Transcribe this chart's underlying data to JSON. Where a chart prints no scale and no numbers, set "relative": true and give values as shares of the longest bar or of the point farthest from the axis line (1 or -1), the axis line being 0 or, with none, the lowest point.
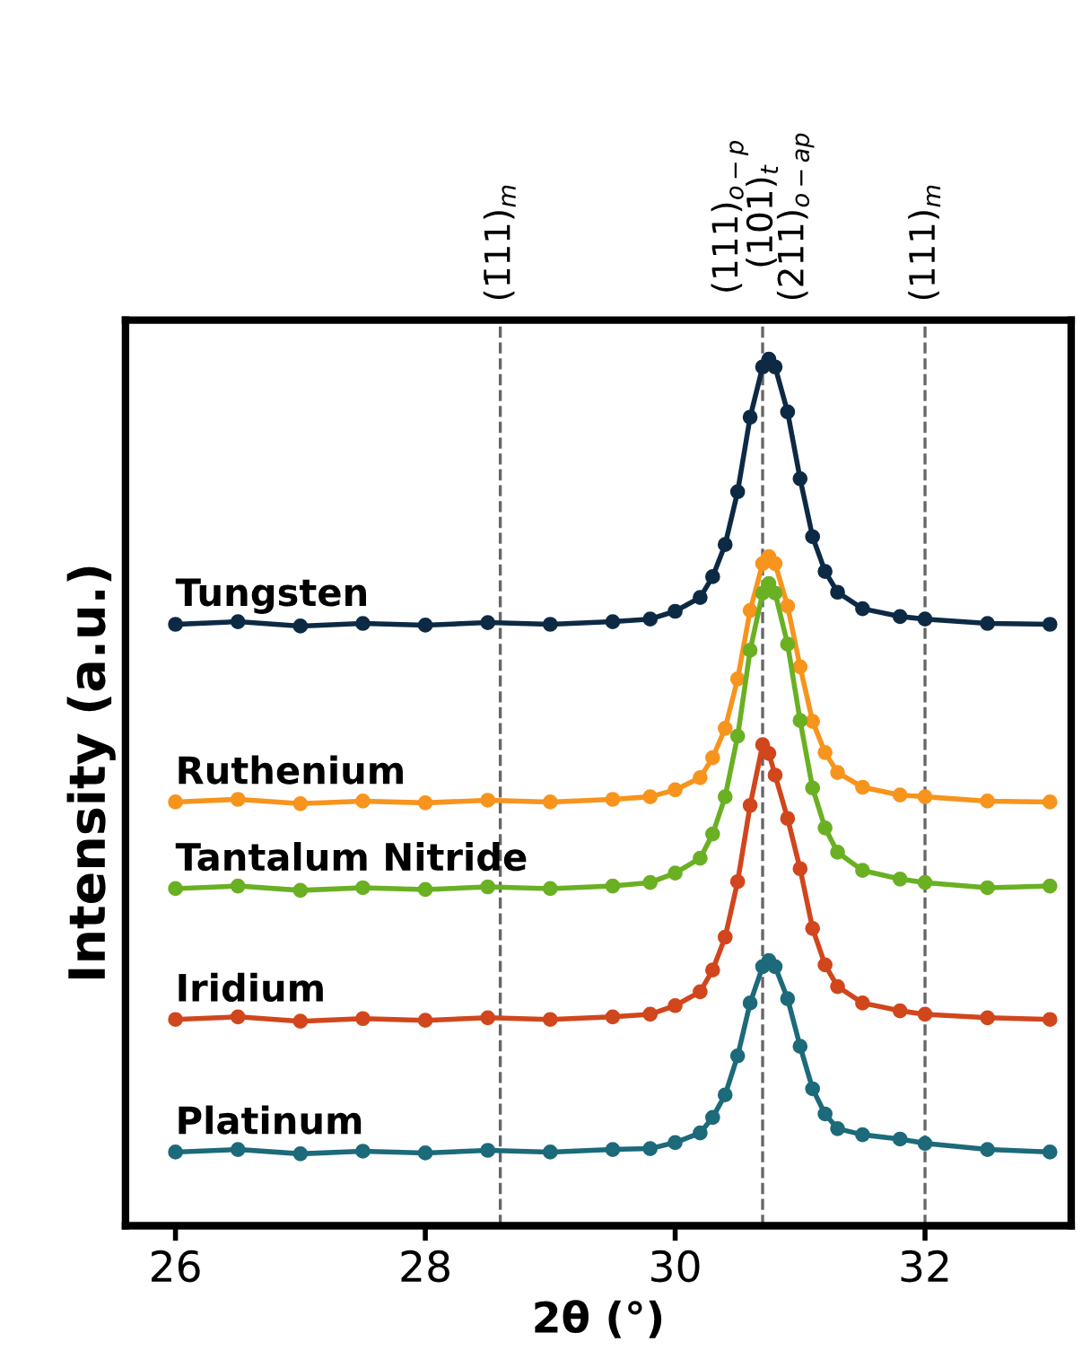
{
  "chart_data": {
    "type": "line",
    "xlabel": "2θ (°)",
    "ylabel": "Intensity (a.u.)",
    "relative": true,
    "marker": "circle",
    "line_style": "solid",
    "grid": false,
    "legend": false,
    "xlim": [
      25.6,
      33.17
    ],
    "xticks": [
      26,
      28,
      30,
      32
    ],
    "ref_lines": [
      {
        "axis": "x",
        "value": 28.6,
        "label": "(1̄11)$_{m}$",
        "color": "#666666",
        "line_style": "dashed"
      },
      {
        "axis": "x",
        "value": 30.7,
        "label": "(111)$_{o−p}$\n(101)$_{t}$\n(211)$_{o−ap}$",
        "color": "#666666",
        "line_style": "dashed"
      },
      {
        "axis": "x",
        "value": 32.0,
        "label": "(111)$_{m}$",
        "color": "#666666",
        "line_style": "dashed"
      }
    ],
    "x": [
      26,
      26.5,
      27,
      27.5,
      28,
      28.5,
      29,
      29.5,
      29.8,
      30,
      30.2,
      30.3,
      30.4,
      30.5,
      30.6,
      30.7,
      30.75,
      30.8,
      30.9,
      31,
      31.1,
      31.2,
      31.3,
      31.5,
      31.8,
      32,
      32.5,
      33
    ],
    "series": [
      {
        "name": "Tungsten",
        "color": "#0d2a45",
        "values": [
          0.694,
          0.697,
          0.692,
          0.695,
          0.693,
          0.696,
          0.694,
          0.697,
          0.7,
          0.709,
          0.725,
          0.749,
          0.786,
          0.847,
          0.933,
          0.991,
          1.0,
          0.991,
          0.939,
          0.862,
          0.795,
          0.755,
          0.731,
          0.712,
          0.703,
          0.7,
          0.695,
          0.694
        ]
      },
      {
        "name": "Ruthenium",
        "color": "#f7941d",
        "values": [
          0.489,
          0.492,
          0.487,
          0.49,
          0.488,
          0.491,
          0.489,
          0.492,
          0.495,
          0.503,
          0.517,
          0.54,
          0.574,
          0.631,
          0.71,
          0.764,
          0.772,
          0.764,
          0.715,
          0.645,
          0.582,
          0.546,
          0.523,
          0.506,
          0.497,
          0.495,
          0.49,
          0.489
        ]
      },
      {
        "name": "Tantalum Nitride",
        "color": "#6ab023",
        "values": [
          0.389,
          0.392,
          0.387,
          0.39,
          0.388,
          0.391,
          0.389,
          0.392,
          0.396,
          0.407,
          0.424,
          0.452,
          0.495,
          0.565,
          0.664,
          0.73,
          0.741,
          0.73,
          0.671,
          0.583,
          0.505,
          0.459,
          0.431,
          0.41,
          0.4,
          0.396,
          0.39,
          0.392
        ]
      },
      {
        "name": "Iridium",
        "color": "#d1461c",
        "values": [
          0.238,
          0.241,
          0.236,
          0.239,
          0.237,
          0.24,
          0.238,
          0.241,
          0.244,
          0.254,
          0.27,
          0.295,
          0.333,
          0.397,
          0.485,
          0.555,
          0.545,
          0.52,
          0.47,
          0.412,
          0.343,
          0.301,
          0.276,
          0.257,
          0.248,
          0.244,
          0.24,
          0.238
        ]
      },
      {
        "name": "Platinum",
        "color": "#1c6a7a",
        "values": [
          0.085,
          0.088,
          0.083,
          0.086,
          0.084,
          0.087,
          0.085,
          0.088,
          0.089,
          0.096,
          0.107,
          0.125,
          0.151,
          0.196,
          0.257,
          0.299,
          0.306,
          0.299,
          0.262,
          0.207,
          0.158,
          0.129,
          0.112,
          0.105,
          0.1,
          0.095,
          0.088,
          0.085
        ]
      }
    ]
  }
}
